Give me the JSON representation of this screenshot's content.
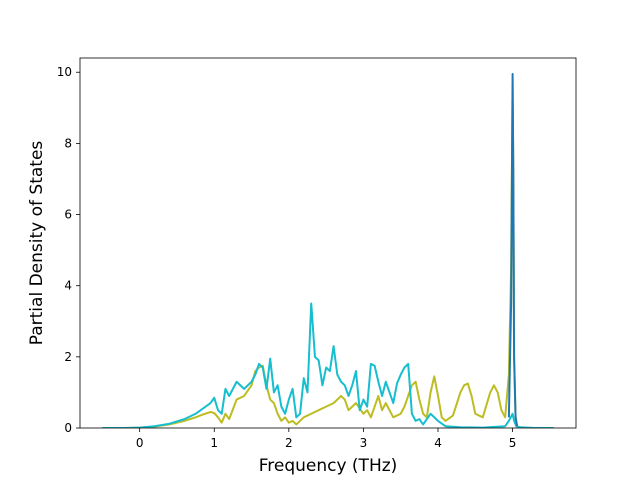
{
  "chart_data": {
    "type": "line",
    "xlabel": "Frequency (THz)",
    "ylabel": "Partial Density of States",
    "xlim": [
      -0.8,
      5.85
    ],
    "ylim": [
      0,
      10.4
    ],
    "xticks": [
      0,
      1,
      2,
      3,
      4,
      5
    ],
    "yticks": [
      0,
      2,
      4,
      6,
      8,
      10
    ],
    "grid": false,
    "series": [
      {
        "color": "#bcbd22",
        "x": [
          -0.5,
          -0.2,
          0,
          0.2,
          0.4,
          0.6,
          0.75,
          0.85,
          0.95,
          1.0,
          1.05,
          1.1,
          1.15,
          1.2,
          1.3,
          1.4,
          1.5,
          1.55,
          1.6,
          1.65,
          1.7,
          1.75,
          1.8,
          1.85,
          1.9,
          1.95,
          2.0,
          2.05,
          2.1,
          2.2,
          2.3,
          2.4,
          2.5,
          2.6,
          2.7,
          2.75,
          2.8,
          2.9,
          3.0,
          3.05,
          3.1,
          3.2,
          3.25,
          3.3,
          3.4,
          3.5,
          3.55,
          3.6,
          3.65,
          3.7,
          3.75,
          3.8,
          3.85,
          3.9,
          3.95,
          4.0,
          4.05,
          4.1,
          4.2,
          4.3,
          4.35,
          4.4,
          4.45,
          4.5,
          4.6,
          4.7,
          4.75,
          4.8,
          4.85,
          4.9,
          4.95,
          4.98,
          5.0,
          5.01,
          5.02,
          5.04,
          5.06,
          5.1,
          5.3,
          5.55
        ],
        "values": [
          0,
          0,
          0.01,
          0.04,
          0.1,
          0.2,
          0.3,
          0.38,
          0.45,
          0.42,
          0.3,
          0.15,
          0.4,
          0.25,
          0.8,
          0.9,
          1.2,
          1.6,
          1.7,
          1.75,
          1.2,
          0.8,
          0.7,
          0.4,
          0.2,
          0.3,
          0.15,
          0.2,
          0.1,
          0.3,
          0.4,
          0.5,
          0.6,
          0.7,
          0.9,
          0.8,
          0.5,
          0.7,
          0.4,
          0.5,
          0.3,
          0.9,
          0.5,
          0.7,
          0.3,
          0.4,
          0.6,
          0.9,
          1.2,
          1.3,
          0.8,
          0.4,
          0.3,
          1.0,
          1.45,
          0.9,
          0.3,
          0.2,
          0.35,
          1.0,
          1.2,
          1.25,
          0.9,
          0.4,
          0.3,
          1.0,
          1.2,
          1.0,
          0.5,
          0.3,
          1.5,
          4.5,
          9.6,
          7.0,
          2.0,
          0.3,
          0.05,
          0,
          0,
          0
        ]
      },
      {
        "color": "#17becf",
        "x": [
          -0.5,
          -0.2,
          0,
          0.2,
          0.4,
          0.6,
          0.75,
          0.85,
          0.95,
          1.0,
          1.05,
          1.1,
          1.15,
          1.2,
          1.3,
          1.4,
          1.5,
          1.55,
          1.6,
          1.65,
          1.7,
          1.75,
          1.8,
          1.85,
          1.9,
          1.95,
          2.0,
          2.05,
          2.1,
          2.15,
          2.2,
          2.25,
          2.3,
          2.35,
          2.4,
          2.45,
          2.5,
          2.55,
          2.6,
          2.65,
          2.7,
          2.75,
          2.8,
          2.85,
          2.9,
          2.95,
          3.0,
          3.05,
          3.1,
          3.15,
          3.2,
          3.25,
          3.3,
          3.35,
          3.4,
          3.45,
          3.5,
          3.55,
          3.6,
          3.65,
          3.7,
          3.75,
          3.8,
          3.9,
          4.0,
          4.1,
          4.3,
          4.6,
          4.9,
          4.95,
          5.0,
          5.02,
          5.05,
          5.1,
          5.3,
          5.55
        ],
        "values": [
          0,
          0,
          0.01,
          0.05,
          0.12,
          0.25,
          0.4,
          0.55,
          0.7,
          0.85,
          0.5,
          0.4,
          1.1,
          0.9,
          1.3,
          1.1,
          1.3,
          1.5,
          1.8,
          1.7,
          1.1,
          1.95,
          1.0,
          1.2,
          0.6,
          0.4,
          0.8,
          1.1,
          0.3,
          0.4,
          1.4,
          1.0,
          3.5,
          2.0,
          1.9,
          1.2,
          1.7,
          1.6,
          2.3,
          1.5,
          1.3,
          1.2,
          0.9,
          1.2,
          1.6,
          0.5,
          0.8,
          0.6,
          1.8,
          1.75,
          1.3,
          0.9,
          1.3,
          1.0,
          0.7,
          1.25,
          1.5,
          1.7,
          1.8,
          0.4,
          0.2,
          0.25,
          0.1,
          0.4,
          0.2,
          0.05,
          0.02,
          0.01,
          0.05,
          0.2,
          0.4,
          0.2,
          0.05,
          0.02,
          0,
          0
        ]
      },
      {
        "color": "#1f77b4",
        "x": [
          4.95,
          4.98,
          5.0,
          5.01,
          5.02,
          5.04,
          5.06
        ],
        "values": [
          0.3,
          3.5,
          9.95,
          7.0,
          2.0,
          0.3,
          0.05
        ]
      }
    ]
  }
}
